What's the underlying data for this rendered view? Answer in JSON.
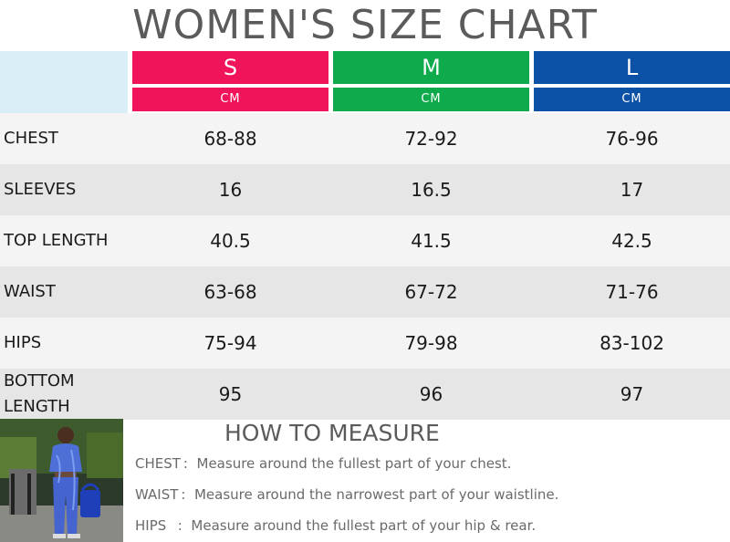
{
  "title": "WOMEN'S SIZE CHART",
  "sizes": [
    {
      "label": "S",
      "unit": "CM",
      "color": "#f0145a"
    },
    {
      "label": "M",
      "unit": "CM",
      "color": "#0faa4b"
    },
    {
      "label": "L",
      "unit": "CM",
      "color": "#0b51a6"
    }
  ],
  "rows": [
    {
      "label": "CHEST",
      "values": [
        "68-88",
        "72-92",
        "76-96"
      ]
    },
    {
      "label": "SLEEVES",
      "values": [
        "16",
        "16.5",
        "17"
      ]
    },
    {
      "label": "TOP LENGTH",
      "values": [
        "40.5",
        "41.5",
        "42.5"
      ]
    },
    {
      "label": "WAIST",
      "values": [
        "63-68",
        "67-72",
        "71-76"
      ]
    },
    {
      "label": "HIPS",
      "values": [
        "75-94",
        "79-98",
        "83-102"
      ]
    },
    {
      "label": "BOTTOM LENGTH",
      "values": [
        "95",
        "96",
        "97"
      ]
    }
  ],
  "how_to": {
    "title": "HOW TO MEASURE",
    "lines": [
      {
        "key": "CHEST :",
        "text": "Measure around the fullest part of your chest."
      },
      {
        "key": "WAIST :",
        "text": "Measure around the narrowest part of your waistline."
      },
      {
        "key": "HIPS   :",
        "text": "Measure around the fullest part of your hip & rear."
      }
    ]
  }
}
